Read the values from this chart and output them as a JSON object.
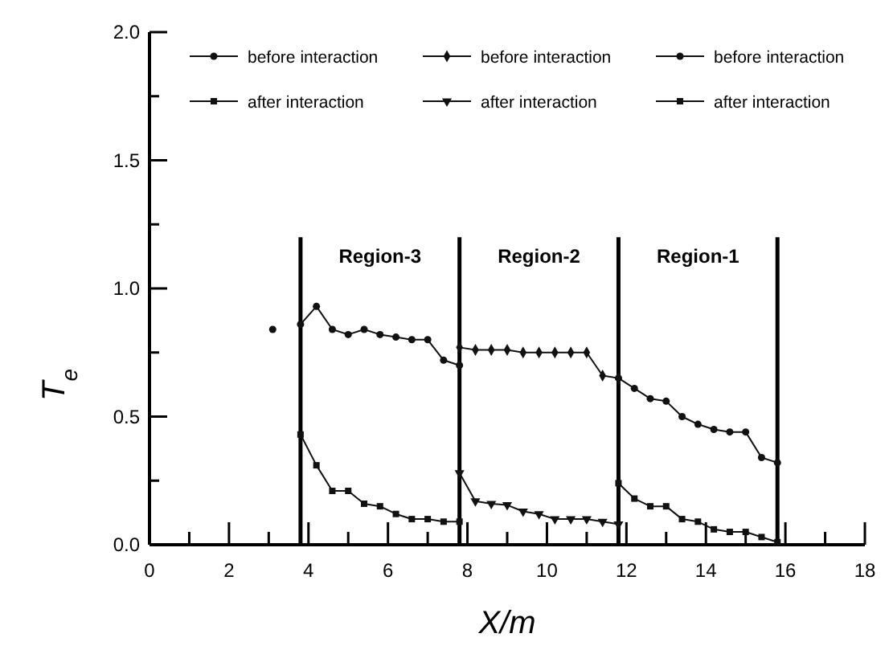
{
  "chart_data": {
    "type": "line",
    "xlabel": "X/m",
    "ylabel": "T$_{e}$",
    "xlim": [
      0,
      18
    ],
    "ylim": [
      0,
      2
    ],
    "xticks": [
      0,
      {
        "value": 1,
        "label": null
      },
      2,
      {
        "value": 3,
        "label": null
      },
      4,
      {
        "value": 5,
        "label": null
      },
      6,
      {
        "value": 7,
        "label": null
      },
      8,
      {
        "value": 9,
        "label": null
      },
      10,
      {
        "value": 11,
        "label": null
      },
      12,
      {
        "value": 13,
        "label": null
      },
      14,
      {
        "value": 15,
        "label": null
      },
      16,
      {
        "value": 17,
        "label": null
      },
      18
    ],
    "yticks": [
      {
        "value": 0,
        "label": "0.0"
      },
      {
        "value": 0.25,
        "label": null
      },
      {
        "value": 0.5,
        "label": "0.5"
      },
      {
        "value": 0.75,
        "label": null
      },
      {
        "value": 1,
        "label": "1.0"
      },
      {
        "value": 1.25,
        "label": null
      },
      {
        "value": 1.5,
        "label": "1.5"
      },
      {
        "value": 1.75,
        "label": null
      },
      {
        "value": 2,
        "label": "2.0"
      }
    ],
    "grid": false,
    "legend": "top",
    "ref_lines": [
      {
        "axis": "x",
        "value": 3.8,
        "color": "#000000"
      },
      {
        "axis": "x",
        "value": 7.8,
        "color": "#000000"
      },
      {
        "axis": "x",
        "value": 11.8,
        "color": "#000000"
      },
      {
        "axis": "x",
        "value": 15.8,
        "color": "#000000"
      }
    ],
    "annotations": [
      "Region-3",
      "Region-2",
      "Region-1"
    ],
    "series": [
      {
        "name": "before interaction",
        "color": "#111111",
        "marker": "circle",
        "x": [
          3.8,
          4.2,
          4.6,
          5.0,
          5.4,
          5.8,
          6.2,
          6.6,
          7.0,
          7.4,
          7.8
        ],
        "values": [
          0.86,
          0.93,
          0.84,
          0.82,
          0.84,
          0.82,
          0.81,
          0.8,
          0.8,
          0.72,
          0.7
        ]
      },
      {
        "name": "before interaction",
        "color": "#111111",
        "marker": "diamond",
        "x": [
          7.8,
          8.2,
          8.6,
          9.0,
          9.4,
          9.8,
          10.2,
          10.6,
          11.0,
          11.4,
          11.8
        ],
        "values": [
          0.77,
          0.76,
          0.76,
          0.76,
          0.75,
          0.75,
          0.75,
          0.75,
          0.75,
          0.66,
          0.65
        ]
      },
      {
        "name": "before interaction",
        "color": "#111111",
        "marker": "circle",
        "x": [
          11.8,
          12.2,
          12.6,
          13.0,
          13.4,
          13.8,
          14.2,
          14.6,
          15.0,
          15.4,
          15.8
        ],
        "values": [
          0.65,
          0.61,
          0.57,
          0.56,
          0.5,
          0.47,
          0.45,
          0.44,
          0.44,
          0.34,
          0.32
        ]
      },
      {
        "name": "after interaction",
        "color": "#111111",
        "marker": "square",
        "x": [
          3.8,
          4.2,
          4.6,
          5.0,
          5.4,
          5.8,
          6.2,
          6.6,
          7.0,
          7.4,
          7.8
        ],
        "values": [
          0.43,
          0.31,
          0.21,
          0.21,
          0.16,
          0.15,
          0.12,
          0.1,
          0.1,
          0.09,
          0.09
        ]
      },
      {
        "name": "after interaction",
        "color": "#111111",
        "marker": "triangle",
        "x": [
          7.8,
          8.2,
          8.6,
          9.0,
          9.4,
          9.8,
          10.2,
          10.6,
          11.0,
          11.4,
          11.8
        ],
        "values": [
          0.28,
          0.17,
          0.16,
          0.155,
          0.13,
          0.12,
          0.1,
          0.1,
          0.1,
          0.09,
          0.08
        ]
      },
      {
        "name": "after interaction",
        "color": "#111111",
        "marker": "square",
        "x": [
          11.8,
          12.2,
          12.6,
          13.0,
          13.4,
          13.8,
          14.2,
          14.6,
          15.0,
          15.4,
          15.8
        ],
        "values": [
          0.24,
          0.18,
          0.15,
          0.15,
          0.1,
          0.09,
          0.06,
          0.05,
          0.05,
          0.03,
          0.01
        ]
      },
      {
        "type": "scatter",
        "color": "#111111",
        "marker": "circle",
        "x": [
          3.1
        ],
        "values": [
          0.84
        ]
      }
    ]
  }
}
